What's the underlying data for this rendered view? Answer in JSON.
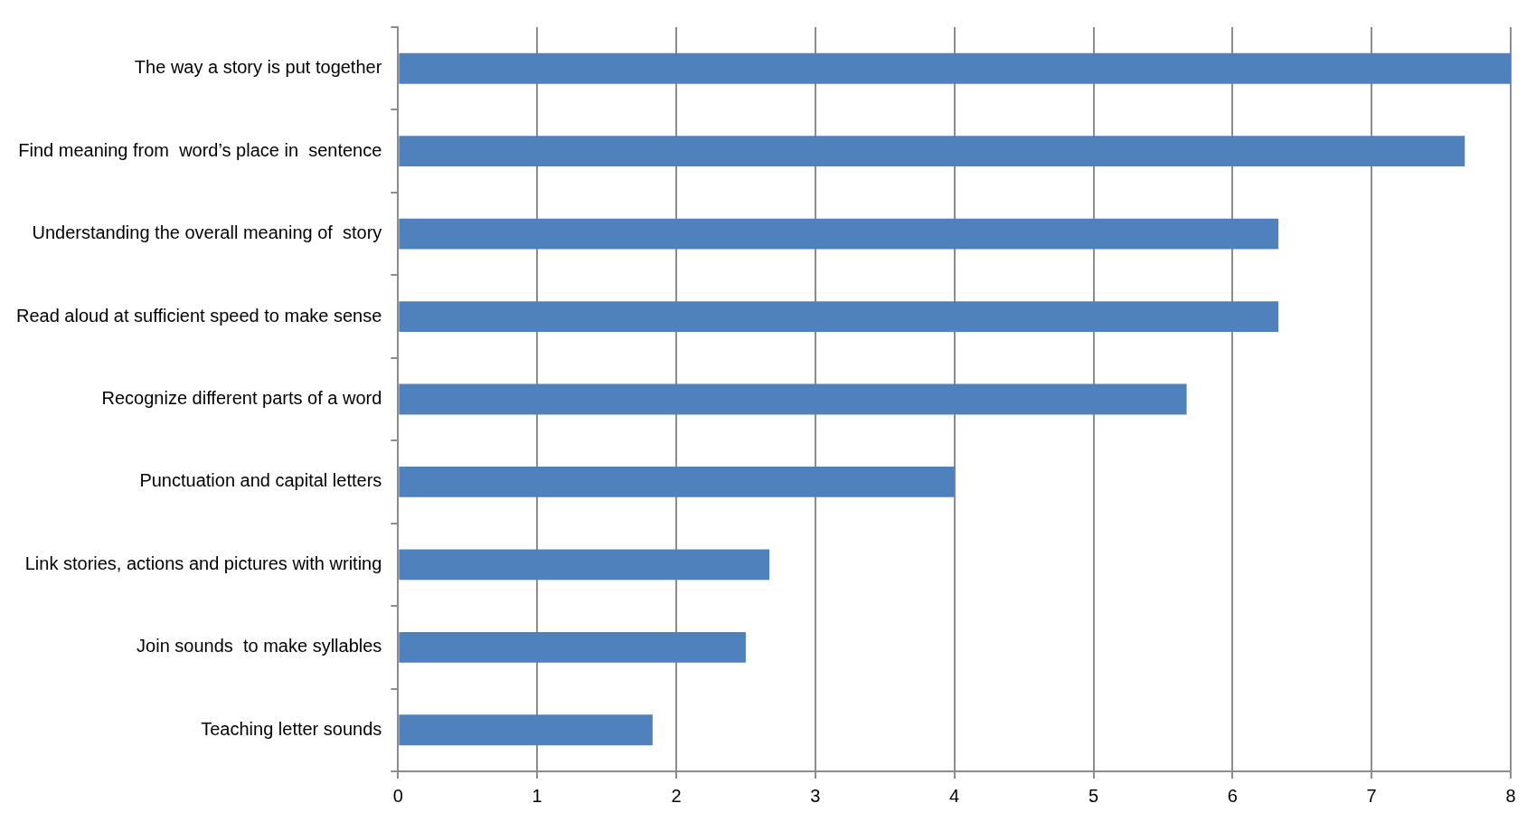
{
  "chart_data": {
    "type": "bar",
    "orientation": "horizontal",
    "categories": [
      "The way a story is put together",
      "Find meaning from  word’s place in  sentence",
      "Understanding the overall meaning of  story",
      "Read aloud at sufficient speed to make sense",
      "Recognize different parts of a word",
      "Punctuation and capital letters",
      "Link stories, actions and pictures with writing",
      "Join sounds  to make syllables",
      "Teaching letter sounds"
    ],
    "values": [
      8,
      7.67,
      6.33,
      6.33,
      5.67,
      4,
      2.67,
      2.5,
      1.83
    ],
    "color": "#4f81bd",
    "xlim": [
      0,
      8
    ],
    "xticks": [
      0,
      1,
      2,
      3,
      4,
      5,
      6,
      7,
      8
    ],
    "grid": "x",
    "legend": false
  }
}
